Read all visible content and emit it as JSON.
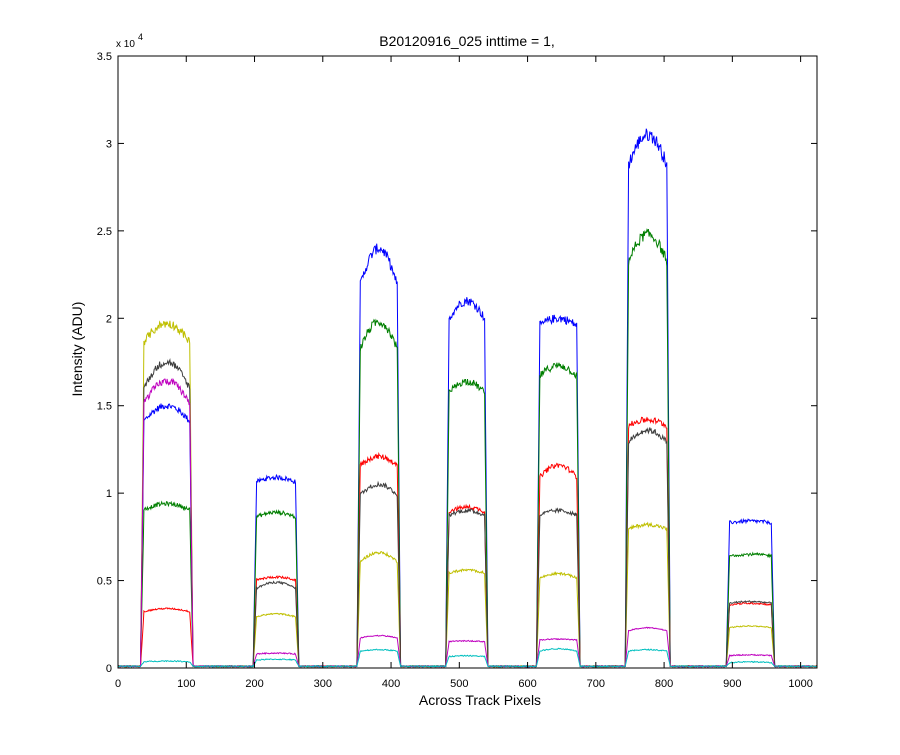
{
  "chart_data": {
    "type": "line",
    "title": "B20120916_025 inttime = 1,",
    "xlabel": "Across Track Pixels",
    "ylabel": "Intensity (ADU)",
    "y_exponent_label": "x 10",
    "y_exponent_power": "4",
    "xlim": [
      0,
      1024
    ],
    "ylim": [
      0,
      35000
    ],
    "xticks": [
      0,
      100,
      200,
      300,
      400,
      500,
      600,
      700,
      800,
      900,
      1000
    ],
    "yticks": [
      0,
      5000,
      10000,
      15000,
      20000,
      25000,
      30000,
      35000
    ],
    "ytick_labels": [
      "0",
      "0.5",
      "1",
      "1.5",
      "2",
      "2.5",
      "3",
      "3.5"
    ],
    "grid": false,
    "legend": "none",
    "baseline": 100,
    "blocks": [
      [
        35,
        108
      ],
      [
        200,
        263
      ],
      [
        352,
        412
      ],
      [
        482,
        540
      ],
      [
        615,
        675
      ],
      [
        745,
        807
      ],
      [
        893,
        960
      ]
    ],
    "series": [
      {
        "color": "#0000ff",
        "levels": [
          [
            14000,
            15000
          ],
          [
            10600,
            10900
          ],
          [
            21500,
            24000
          ],
          [
            19800,
            21000
          ],
          [
            19500,
            20000
          ],
          [
            28500,
            30500
          ],
          [
            8300,
            8400
          ]
        ]
      },
      {
        "color": "#007f00",
        "levels": [
          [
            9000,
            9400
          ],
          [
            8600,
            8900
          ],
          [
            18000,
            19800
          ],
          [
            15600,
            16400
          ],
          [
            16600,
            17300
          ],
          [
            23000,
            24800
          ],
          [
            6400,
            6500
          ]
        ]
      },
      {
        "color": "#ff0000",
        "levels": [
          [
            3200,
            3400
          ],
          [
            5000,
            5200
          ],
          [
            11500,
            12100
          ],
          [
            8900,
            9200
          ],
          [
            10800,
            11600
          ],
          [
            13800,
            14200
          ],
          [
            3600,
            3700
          ]
        ]
      },
      {
        "color": "#bfbf00",
        "levels": [
          [
            18500,
            19700
          ],
          [
            2900,
            3100
          ],
          [
            6000,
            6600
          ],
          [
            5400,
            5600
          ],
          [
            5100,
            5400
          ],
          [
            7900,
            8200
          ],
          [
            2300,
            2400
          ]
        ]
      },
      {
        "color": "#3f3f3f",
        "levels": [
          [
            15800,
            17500
          ],
          [
            4500,
            4900
          ],
          [
            9800,
            10500
          ],
          [
            8700,
            9000
          ],
          [
            8700,
            9000
          ],
          [
            12800,
            13600
          ],
          [
            3700,
            3800
          ]
        ]
      },
      {
        "color": "#bf00bf",
        "levels": [
          [
            15000,
            16400
          ],
          [
            800,
            850
          ],
          [
            1700,
            1850
          ],
          [
            1500,
            1550
          ],
          [
            1600,
            1650
          ],
          [
            2100,
            2300
          ],
          [
            700,
            750
          ]
        ]
      },
      {
        "color": "#00bfbf",
        "levels": [
          [
            350,
            400
          ],
          [
            450,
            500
          ],
          [
            950,
            1050
          ],
          [
            650,
            700
          ],
          [
            950,
            1100
          ],
          [
            950,
            1050
          ],
          [
            300,
            350
          ]
        ]
      }
    ]
  }
}
